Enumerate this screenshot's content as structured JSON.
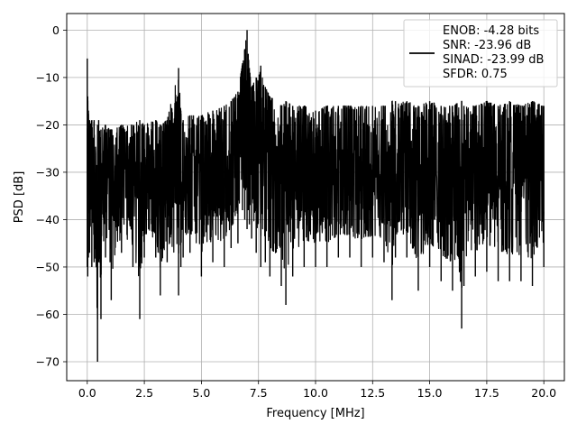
{
  "chart_data": {
    "type": "line",
    "title": "",
    "xlabel": "Frequency [MHz]",
    "ylabel": "PSD [dB]",
    "xlim": [
      -0.9,
      20.9
    ],
    "ylim": [
      -74,
      3.5
    ],
    "xticks": [
      0.0,
      2.5,
      5.0,
      7.5,
      10.0,
      12.5,
      15.0,
      17.5,
      20.0
    ],
    "xtick_labels": [
      "0.0",
      "2.5",
      "5.0",
      "7.5",
      "10.0",
      "12.5",
      "15.0",
      "17.5",
      "20.0"
    ],
    "yticks": [
      0,
      -10,
      -20,
      -30,
      -40,
      -50,
      -60,
      -70
    ],
    "ytick_labels": [
      "0",
      "−10",
      "−20",
      "−30",
      "−40",
      "−50",
      "−60",
      "−70"
    ],
    "grid": true,
    "legend_position": "top-right",
    "legend_lines": [
      "ENOB: -4.28 bits",
      "SNR: -23.96 dB",
      "SINAD: -23.99 dB",
      "SFDR: 0.75"
    ],
    "line_color": "#000000",
    "series": [
      {
        "x": [
          0.0,
          0.02,
          0.05,
          0.1,
          0.2,
          0.3,
          0.45,
          0.5,
          0.6,
          0.8,
          1.0,
          1.05,
          1.5,
          2.0,
          2.3,
          2.5,
          3.0,
          3.2,
          3.5,
          4.0,
          4.1,
          4.2,
          4.5,
          5.0,
          5.5,
          6.0,
          6.3,
          6.6,
          6.8,
          6.9,
          7.0,
          7.05,
          7.1,
          7.2,
          7.4,
          7.6,
          7.8,
          8.0,
          8.5,
          8.7,
          9.0,
          9.5,
          10.0,
          10.5,
          11.0,
          11.5,
          12.0,
          12.5,
          13.0,
          13.35,
          13.5,
          14.0,
          14.5,
          15.0,
          15.5,
          16.0,
          16.4,
          16.5,
          17.0,
          17.5,
          18.0,
          18.5,
          19.0,
          19.5,
          20.0
        ],
        "upper": [
          -6,
          -14,
          -17,
          -19,
          -19,
          -19,
          -20,
          -19,
          -21,
          -20,
          -21,
          -21,
          -20,
          -20,
          -19,
          -20,
          -19,
          -20,
          -19,
          -8,
          -17,
          -19,
          -18,
          -18,
          -17,
          -16,
          -15,
          -13,
          -7,
          -4,
          0,
          -5,
          -8,
          -12,
          -10,
          -7.5,
          -12,
          -14,
          -16,
          -15,
          -16,
          -16,
          -17,
          -16,
          -16,
          -16,
          -16,
          -16,
          -16,
          -15,
          -15,
          -15,
          -16,
          -15,
          -16,
          -16,
          -15,
          -16,
          -16,
          -15,
          -16,
          -15,
          -16,
          -15,
          -16
        ],
        "lower": [
          -50,
          -52,
          -48,
          -47,
          -50,
          -49,
          -70,
          -49,
          -61,
          -48,
          -49,
          -57,
          -47,
          -50,
          -61,
          -48,
          -48,
          -56,
          -49,
          -56,
          -50,
          -48,
          -47,
          -52,
          -49,
          -50,
          -46,
          -45,
          -38,
          -40,
          -42,
          -38,
          -41,
          -44,
          -47,
          -50,
          -49,
          -52,
          -54,
          -58,
          -52,
          -50,
          -50,
          -50,
          -48,
          -48,
          -50,
          -48,
          -49,
          -57,
          -48,
          -48,
          -55,
          -50,
          -53,
          -55,
          -63,
          -54,
          -52,
          -51,
          -53,
          -53,
          -53,
          -54,
          -50
        ]
      }
    ]
  }
}
